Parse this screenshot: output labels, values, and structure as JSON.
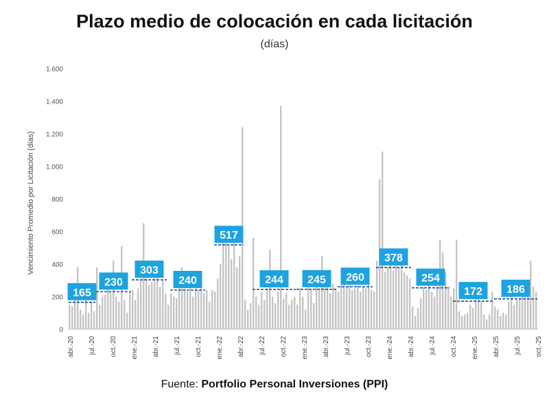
{
  "chart_data": {
    "type": "bar",
    "title": "Plazo medio de colocación en cada licitación",
    "subtitle": "(días)",
    "ylabel": "Vencimiento Promedio por Licitación (días)",
    "xlabel": "",
    "ylim": [
      0,
      1600
    ],
    "yticks": [
      0,
      200,
      400,
      600,
      800,
      1000,
      1200,
      1400,
      1600
    ],
    "ytick_labels": [
      "0",
      "200",
      "400",
      "600",
      "800",
      "1.000",
      "1.200",
      "1.400",
      "1.600"
    ],
    "xtick_labels": [
      "abr.-20",
      "jul.-20",
      "oct.-20",
      "ene.-21",
      "abr.-21",
      "jul.-21",
      "oct.-21",
      "ene.-22",
      "abr.-22",
      "jul.-22",
      "oct.-22",
      "ene.-23",
      "abr.-23",
      "jul.-23",
      "oct.-23",
      "ene.-24",
      "abr.-24",
      "jul.-24",
      "oct.-24",
      "ene.-25",
      "abr.-25",
      "jul.-25",
      "oct.-25"
    ],
    "values": [
      150,
      140,
      230,
      380,
      120,
      90,
      200,
      100,
      170,
      110,
      380,
      150,
      200,
      210,
      250,
      230,
      420,
      200,
      170,
      510,
      180,
      100,
      230,
      240,
      180,
      250,
      300,
      650,
      320,
      270,
      290,
      330,
      360,
      260,
      300,
      220,
      150,
      220,
      200,
      190,
      300,
      380,
      250,
      230,
      260,
      200,
      280,
      240,
      270,
      220,
      240,
      170,
      240,
      230,
      310,
      400,
      600,
      560,
      520,
      430,
      560,
      380,
      450,
      1240,
      180,
      120,
      160,
      560,
      200,
      150,
      230,
      180,
      250,
      490,
      200,
      160,
      230,
      1370,
      190,
      220,
      150,
      180,
      200,
      150,
      250,
      200,
      120,
      300,
      240,
      160,
      280,
      250,
      450,
      300,
      260,
      220,
      280,
      240,
      230,
      280,
      300,
      260,
      290,
      240,
      250,
      270,
      230,
      260,
      250,
      300,
      240,
      230,
      420,
      920,
      1090,
      350,
      380,
      400,
      360,
      420,
      380,
      400,
      350,
      330,
      310,
      140,
      80,
      130,
      190,
      260,
      240,
      300,
      230,
      200,
      260,
      550,
      470,
      350,
      260,
      200,
      250,
      550,
      110,
      80,
      90,
      100,
      150,
      130,
      280,
      200,
      170,
      90,
      60,
      90,
      230,
      140,
      120,
      80,
      100,
      90,
      170,
      200,
      150,
      180,
      190,
      210,
      230,
      200,
      420,
      260,
      230
    ],
    "period_averages": [
      {
        "label": "165",
        "value": 165,
        "start": 0,
        "end": 9
      },
      {
        "label": "230",
        "value": 230,
        "start": 10,
        "end": 22
      },
      {
        "label": "303",
        "value": 303,
        "start": 23,
        "end": 35
      },
      {
        "label": "240",
        "value": 240,
        "start": 37,
        "end": 49
      },
      {
        "label": "517",
        "value": 517,
        "start": 53,
        "end": 63
      },
      {
        "label": "244",
        "value": 244,
        "start": 67,
        "end": 82
      },
      {
        "label": "245",
        "value": 245,
        "start": 83,
        "end": 97
      },
      {
        "label": "260",
        "value": 260,
        "start": 98,
        "end": 110
      },
      {
        "label": "378",
        "value": 378,
        "start": 112,
        "end": 124
      },
      {
        "label": "254",
        "value": 254,
        "start": 125,
        "end": 138
      },
      {
        "label": "172",
        "value": 172,
        "start": 140,
        "end": 154
      },
      {
        "label": "186",
        "value": 186,
        "start": 155,
        "end": 170
      }
    ],
    "colors": {
      "bars": "#c4c4c4",
      "average_line": "#1f4e8c",
      "label_box": "#1ea3e0"
    }
  },
  "source": {
    "prefix": "Fuente: ",
    "name": "Portfolio Personal Inversiones (PPI)"
  }
}
